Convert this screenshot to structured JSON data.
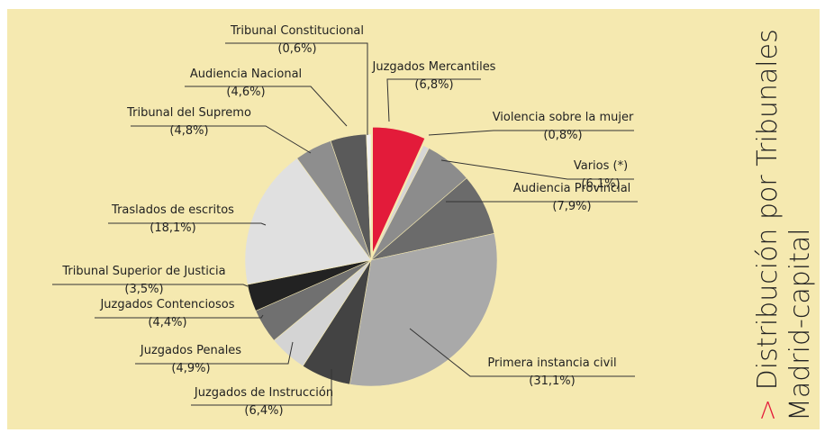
{
  "chart_data": {
    "type": "pie",
    "title_marker": ">",
    "title": "Distribución por Tribunales",
    "subtitle": "Madrid-capital",
    "categories": [
      "Juzgados Mercantiles",
      "Violencia sobre la mujer",
      "Varios (*)",
      "Audiencia Provincial",
      "Primera instancia civil",
      "Juzgados de Instrucción",
      "Juzgados Penales",
      "Juzgados Contenciosos",
      "Tribunal Superior de Justicia",
      "Traslados de escritos",
      "Tribunal del Supremo",
      "Audiencia Nacional",
      "Tribunal Constitucional"
    ],
    "values": [
      6.8,
      0.8,
      6.1,
      7.9,
      31.1,
      6.4,
      4.9,
      4.4,
      3.5,
      18.1,
      4.8,
      4.6,
      0.6
    ],
    "value_labels": [
      "(6,8%)",
      "(0,8%)",
      "(6,1%)",
      "(7,9%)",
      "(31,1%)",
      "(6,4%)",
      "(4,9%)",
      "(4,4%)",
      "(3,5%)",
      "(18,1%)",
      "(4,8%)",
      "(4,6%)",
      "(0,6%)"
    ],
    "colors": [
      "#e31b3a",
      "#d6d6d6",
      "#8c8c8c",
      "#6b6b6b",
      "#a9a9a9",
      "#434343",
      "#d4d4d4",
      "#707070",
      "#222222",
      "#e0e0e0",
      "#8e8e8e",
      "#5a5a5a",
      "#f2f2f2"
    ],
    "exploded": [
      0
    ]
  }
}
